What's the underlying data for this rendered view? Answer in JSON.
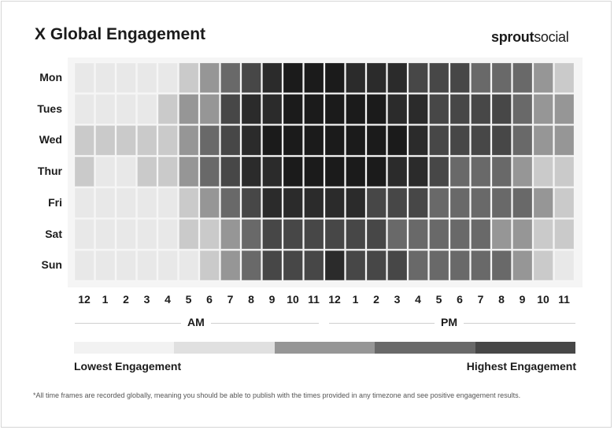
{
  "header": {
    "title": "X Global Engagement",
    "logo_bold": "sprout",
    "logo_light": "social"
  },
  "chart_data": {
    "type": "heatmap",
    "title": "X Global Engagement",
    "rows": [
      "Mon",
      "Tues",
      "Wed",
      "Thur",
      "Fri",
      "Sat",
      "Sun"
    ],
    "columns": [
      "12",
      "1",
      "2",
      "3",
      "4",
      "5",
      "6",
      "7",
      "8",
      "9",
      "10",
      "11",
      "12",
      "1",
      "2",
      "3",
      "4",
      "5",
      "6",
      "7",
      "8",
      "9",
      "10",
      "11"
    ],
    "period_labels": [
      "AM",
      "PM"
    ],
    "scale_colors": [
      "#e8e8e8",
      "#cacaca",
      "#969696",
      "#696969",
      "#474747",
      "#2b2b2b",
      "#1b1b1b"
    ],
    "values": [
      [
        1,
        1,
        1,
        1,
        1,
        2,
        3,
        4,
        5,
        6,
        7,
        7,
        7,
        6,
        6,
        6,
        5,
        5,
        5,
        4,
        4,
        4,
        3,
        2
      ],
      [
        1,
        1,
        1,
        1,
        2,
        3,
        3,
        5,
        6,
        6,
        7,
        7,
        7,
        7,
        7,
        6,
        6,
        5,
        5,
        5,
        5,
        4,
        3,
        3
      ],
      [
        2,
        2,
        2,
        2,
        2,
        3,
        4,
        5,
        6,
        7,
        7,
        7,
        7,
        7,
        7,
        7,
        6,
        5,
        5,
        5,
        5,
        4,
        3,
        3
      ],
      [
        2,
        1,
        1,
        2,
        2,
        3,
        4,
        5,
        6,
        6,
        7,
        7,
        7,
        7,
        7,
        6,
        6,
        5,
        4,
        4,
        4,
        3,
        2,
        2
      ],
      [
        1,
        1,
        1,
        1,
        1,
        2,
        3,
        4,
        5,
        6,
        6,
        6,
        6,
        6,
        5,
        5,
        5,
        4,
        4,
        4,
        4,
        4,
        3,
        2
      ],
      [
        1,
        1,
        1,
        1,
        1,
        2,
        2,
        3,
        4,
        5,
        5,
        5,
        5,
        5,
        5,
        4,
        4,
        4,
        4,
        4,
        3,
        3,
        2,
        2
      ],
      [
        1,
        1,
        1,
        1,
        1,
        1,
        2,
        3,
        4,
        5,
        5,
        5,
        6,
        5,
        5,
        5,
        4,
        4,
        4,
        4,
        4,
        3,
        2,
        1
      ]
    ],
    "legend": {
      "colors": [
        "#f2f2f2",
        "#e0e0e0",
        "#969696",
        "#696969",
        "#474747"
      ],
      "low_label": "Lowest Engagement",
      "high_label": "Highest Engagement"
    }
  },
  "footnote": "*All time frames are recorded globally, meaning you should be able to publish with the times provided in any timezone and see positive engagement results."
}
